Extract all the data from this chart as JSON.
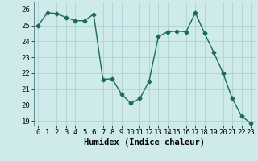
{
  "x": [
    0,
    1,
    2,
    3,
    4,
    5,
    6,
    7,
    8,
    9,
    10,
    11,
    12,
    13,
    14,
    15,
    16,
    17,
    18,
    19,
    20,
    21,
    22,
    23
  ],
  "y": [
    25.0,
    25.8,
    25.75,
    25.5,
    25.3,
    25.3,
    25.7,
    21.6,
    21.65,
    20.7,
    20.1,
    20.4,
    21.5,
    24.3,
    24.6,
    24.65,
    24.6,
    25.8,
    24.5,
    23.3,
    22.0,
    20.4,
    19.3,
    18.85
  ],
  "line_color": "#1a6b5a",
  "marker": "D",
  "markersize": 2.5,
  "linewidth": 1.0,
  "xlabel": "Humidex (Indice chaleur)",
  "xlim": [
    -0.5,
    23.5
  ],
  "ylim": [
    18.7,
    26.5
  ],
  "yticks": [
    19,
    20,
    21,
    22,
    23,
    24,
    25,
    26
  ],
  "xticks": [
    0,
    1,
    2,
    3,
    4,
    5,
    6,
    7,
    8,
    9,
    10,
    11,
    12,
    13,
    14,
    15,
    16,
    17,
    18,
    19,
    20,
    21,
    22,
    23
  ],
  "bg_color": "#ceeaea",
  "grid_color": "#aacece",
  "tick_fontsize": 6.5,
  "xlabel_fontsize": 7.5
}
